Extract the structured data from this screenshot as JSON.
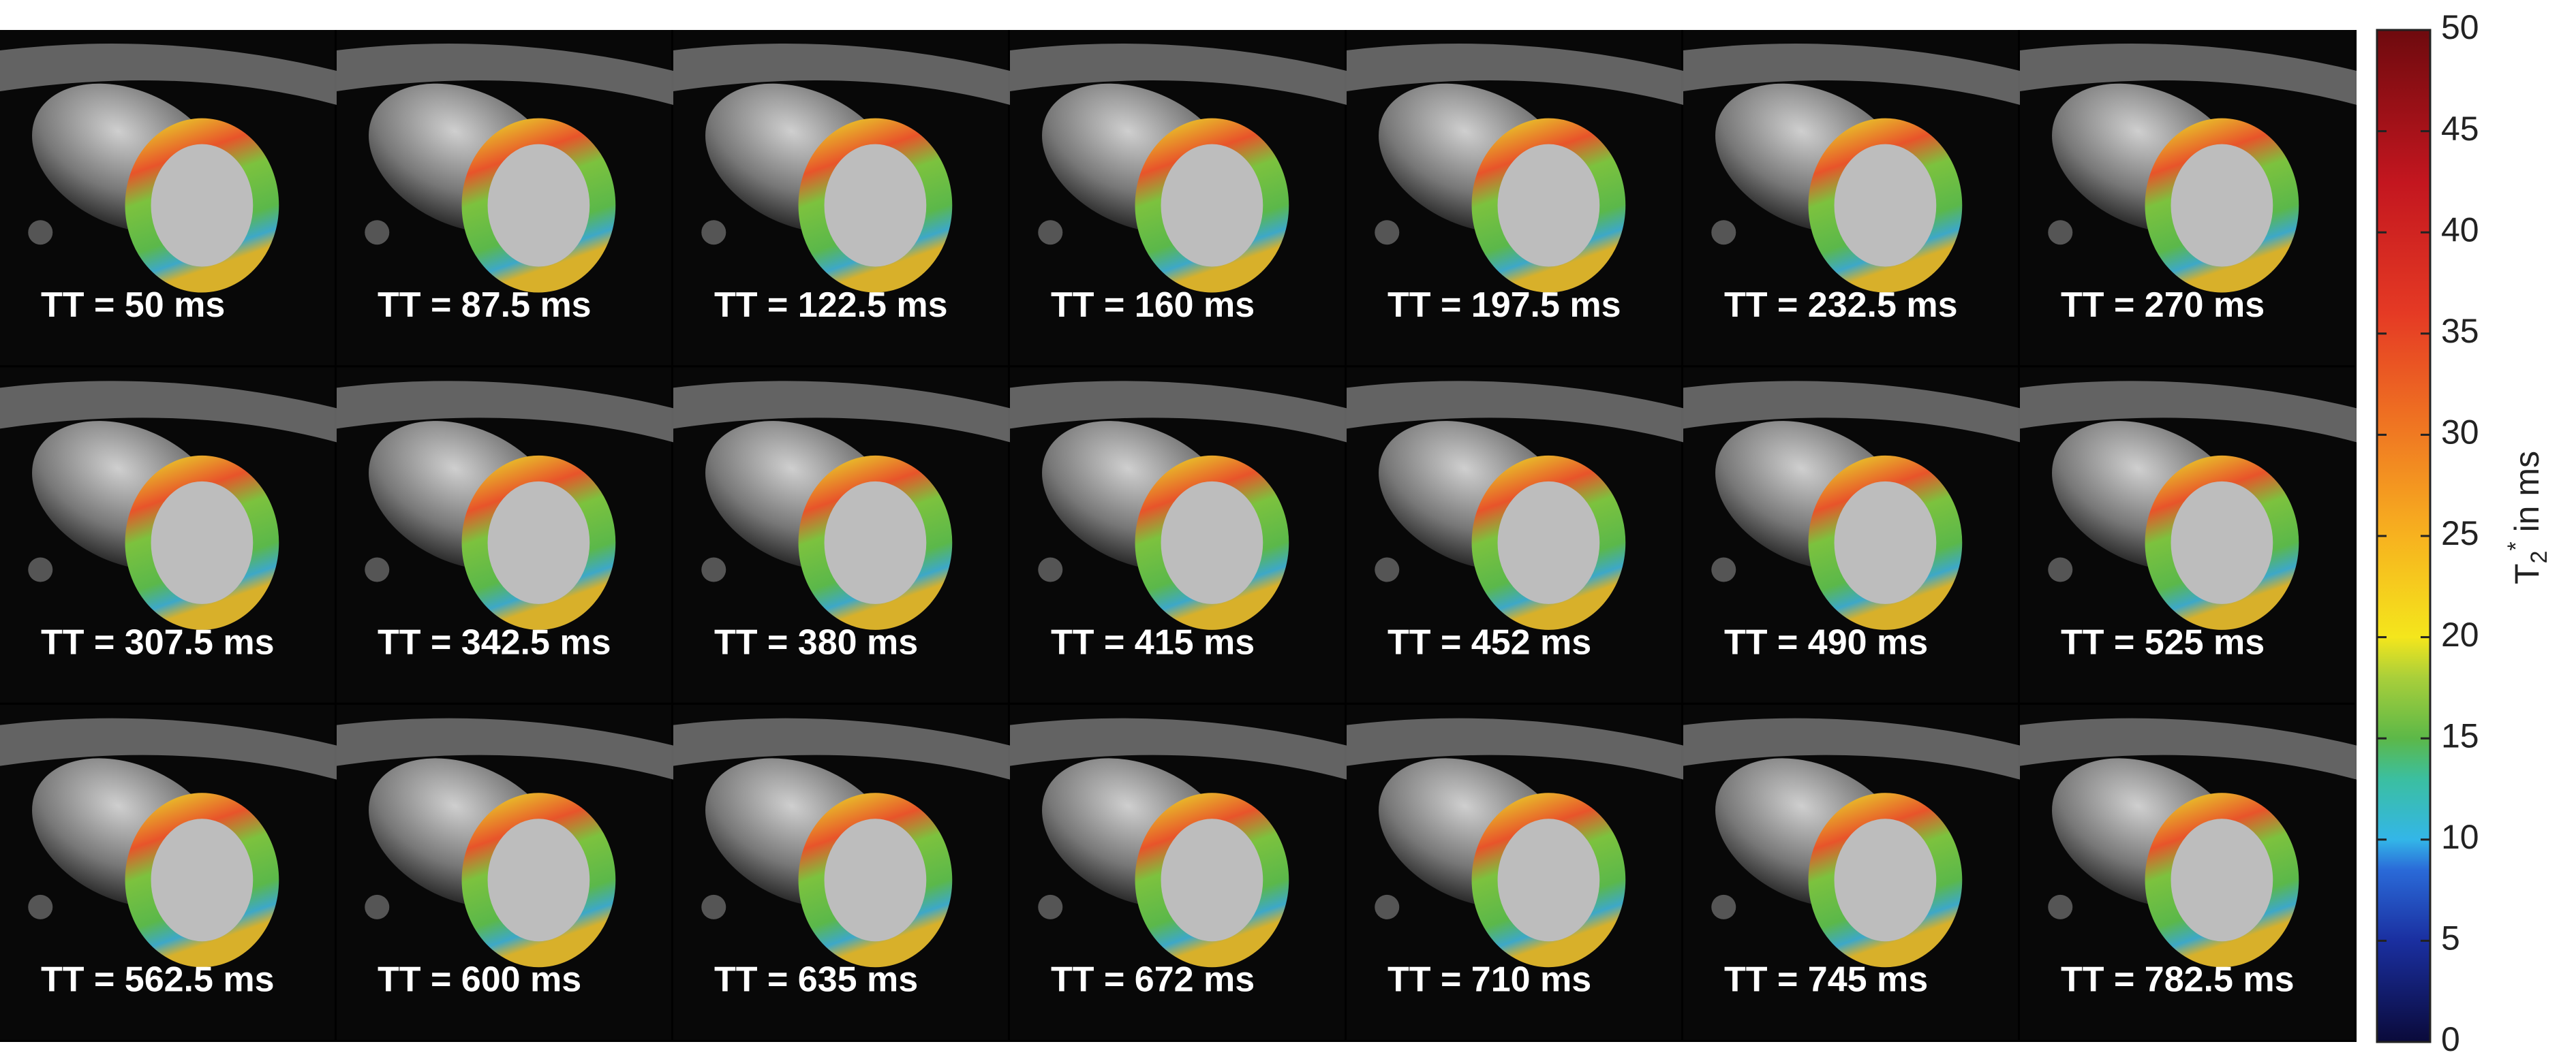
{
  "panels": [
    "TT = 50 ms",
    "TT = 87.5 ms",
    "TT = 122.5 ms",
    "TT = 160 ms",
    "TT = 197.5 ms",
    "TT = 232.5 ms",
    "TT = 270 ms",
    "TT = 307.5 ms",
    "TT = 342.5 ms",
    "TT = 380 ms",
    "TT = 415 ms",
    "TT = 452 ms",
    "TT = 490 ms",
    "TT = 525 ms",
    "TT = 562.5 ms",
    "TT = 600 ms",
    "TT = 635 ms",
    "TT = 672 ms",
    "TT = 710 ms",
    "TT = 745 ms",
    "TT = 782.5 ms"
  ],
  "colorbar": {
    "lim": [
      0,
      50
    ],
    "ticks": [
      0,
      5,
      10,
      15,
      20,
      25,
      30,
      35,
      40,
      45,
      50
    ],
    "label": {
      "main": "T",
      "sub": "2",
      "sup": "*",
      "rest": " in ms"
    }
  }
}
